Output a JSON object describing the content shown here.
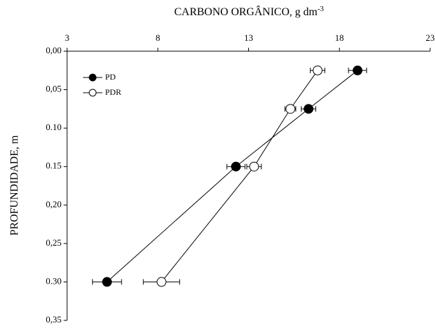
{
  "chart_data": {
    "type": "line",
    "xlabel": "CARBONO ORGÂNICO, g dm",
    "xlabel_exponent": "-3",
    "ylabel": "PROFUNDIDADE, m",
    "xlim": [
      3,
      23
    ],
    "xticks": [
      3,
      8,
      13,
      18,
      23
    ],
    "ylim": [
      0,
      0.35
    ],
    "yticks": [
      {
        "value": 0,
        "label": "0,00"
      },
      {
        "value": 0.05,
        "label": "0,05"
      },
      {
        "value": 0.1,
        "label": "0.10"
      },
      {
        "value": 0.15,
        "label": "0.15"
      },
      {
        "value": 0.2,
        "label": "0,20"
      },
      {
        "value": 0.25,
        "label": "0,25"
      },
      {
        "value": 0.3,
        "label": "0.30"
      },
      {
        "value": 0.35,
        "label": "0,35"
      }
    ],
    "y_inverted": true,
    "x_axis_position": "top",
    "legend": "upper-left",
    "depths": [
      0.025,
      0.075,
      0.15,
      0.3
    ],
    "series": [
      {
        "name": "PD",
        "color": "#000000",
        "values": [
          19.0,
          16.3,
          12.3,
          5.2
        ],
        "errors": [
          0.5,
          0.4,
          0.5,
          0.8
        ]
      },
      {
        "name": "PDR",
        "color": "#ffffff",
        "values": [
          16.8,
          15.3,
          13.3,
          8.2
        ],
        "errors": [
          0.4,
          0.3,
          0.4,
          1.0
        ]
      }
    ]
  }
}
